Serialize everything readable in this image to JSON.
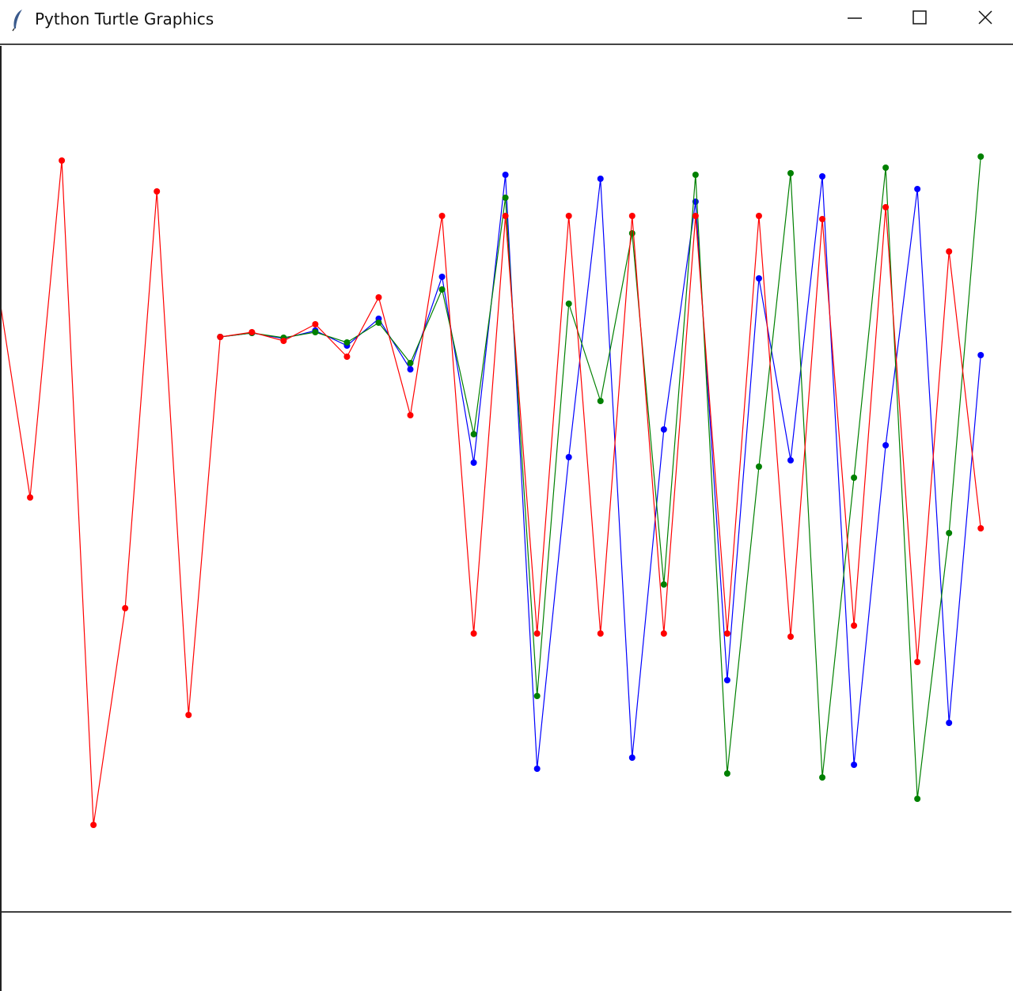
{
  "window": {
    "title": "Python Turtle Graphics",
    "icon": "feather-icon",
    "controls": [
      "minimize-icon",
      "maximize-icon",
      "close-icon"
    ]
  },
  "chart_data": {
    "type": "line",
    "title": "",
    "xlabel": "",
    "ylabel": "",
    "grid": false,
    "legend": "none",
    "markers": true,
    "series": [
      {
        "color": "#0000ff",
        "start_index": 7,
        "values": [
          727,
          732,
          725,
          735,
          716,
          750,
          686,
          803,
          568,
          932,
          181,
          575,
          927,
          195,
          610,
          898,
          293,
          801,
          571,
          930,
          186,
          590,
          914,
          239,
          704
        ]
      },
      {
        "color": "#008000",
        "start_index": 7,
        "values": [
          727,
          732,
          726,
          733,
          720,
          745,
          694,
          787,
          604,
          903,
          273,
          769,
          646,
          858,
          414,
          932,
          175,
          563,
          934,
          170,
          549,
          941,
          143,
          479,
          955
        ]
      },
      {
        "color": "#ff0000",
        "start_index": 0,
        "values": [
          785,
          524,
          950,
          110,
          384,
          911,
          249,
          727,
          733,
          722,
          743,
          702,
          777,
          628,
          880,
          352,
          880,
          352,
          880,
          352,
          880,
          352,
          880,
          352,
          880,
          348,
          876,
          362,
          891,
          316,
          835,
          485
        ]
      }
    ]
  }
}
